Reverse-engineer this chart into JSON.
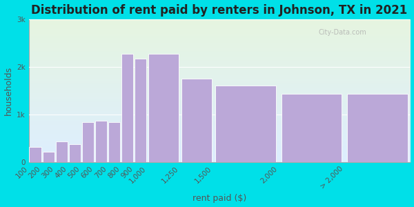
{
  "title": "Distribution of rent paid by renters in Johnson, TX in 2021",
  "xlabel": "rent paid ($)",
  "ylabel": "households",
  "bar_lefts": [
    100,
    200,
    300,
    400,
    500,
    600,
    700,
    800,
    900,
    1000,
    1250,
    1500,
    2000,
    2500
  ],
  "bar_widths": [
    100,
    100,
    100,
    100,
    100,
    100,
    100,
    100,
    100,
    250,
    250,
    500,
    500,
    500
  ],
  "values": [
    320,
    210,
    430,
    370,
    830,
    860,
    830,
    2270,
    2170,
    2270,
    1750,
    1600,
    1430,
    1430
  ],
  "xtick_positions": [
    100,
    200,
    300,
    400,
    500,
    600,
    700,
    800,
    900,
    1000,
    1250,
    1500,
    2000,
    2500
  ],
  "xtick_labels": [
    "100",
    "200",
    "300",
    "400",
    "500",
    "600",
    "700",
    "800",
    "900",
    "1,000",
    "1,250",
    "1,500",
    "2,000",
    "> 2,000"
  ],
  "bar_color": "#bba8d8",
  "bar_edge_color": "#ffffff",
  "background_outer": "#00e0e8",
  "background_inner_top": "#e6f5e0",
  "background_inner_bottom": "#ddeeff",
  "ylim": [
    0,
    3000
  ],
  "xlim": [
    100,
    3000
  ],
  "yticks": [
    0,
    1000,
    2000,
    3000
  ],
  "ytick_labels": [
    "0",
    "1k",
    "2k",
    "3k"
  ],
  "title_fontsize": 12,
  "axis_label_fontsize": 9,
  "tick_fontsize": 7.5,
  "watermark_text": "City-Data.com"
}
